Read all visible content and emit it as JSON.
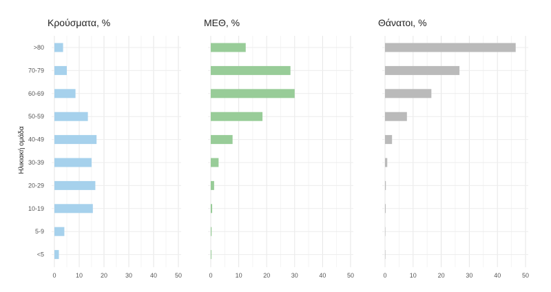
{
  "chart_data": {
    "type": "bar",
    "orientation": "horizontal",
    "ylabel": "Ηλικιακή ομάδα",
    "categories": [
      ">80",
      "70-79",
      "60-69",
      "50-59",
      "40-49",
      "30-39",
      "20-29",
      "10-19",
      "5-9",
      "<5"
    ],
    "xlim": [
      0,
      50
    ],
    "x_ticks": [
      0,
      10,
      20,
      30,
      40,
      50
    ],
    "grid": true,
    "legend": "none",
    "panels": [
      {
        "title": "Κρούσματα, %",
        "color": "#a6d1ec",
        "values": [
          3.5,
          5,
          8.5,
          13.5,
          17,
          15,
          16.5,
          15.5,
          4,
          1.8
        ]
      },
      {
        "title": "ΜΕΘ, %",
        "color": "#98cc98",
        "values": [
          12.5,
          28.5,
          30,
          18.5,
          7.8,
          2.8,
          1.2,
          0.5,
          0.3,
          0.2
        ]
      },
      {
        "title": "Θάνατοι, %",
        "color": "#bababa",
        "values": [
          46.5,
          26.5,
          16.5,
          7.8,
          2.5,
          0.8,
          0.3,
          0.2,
          0,
          0
        ]
      }
    ]
  }
}
